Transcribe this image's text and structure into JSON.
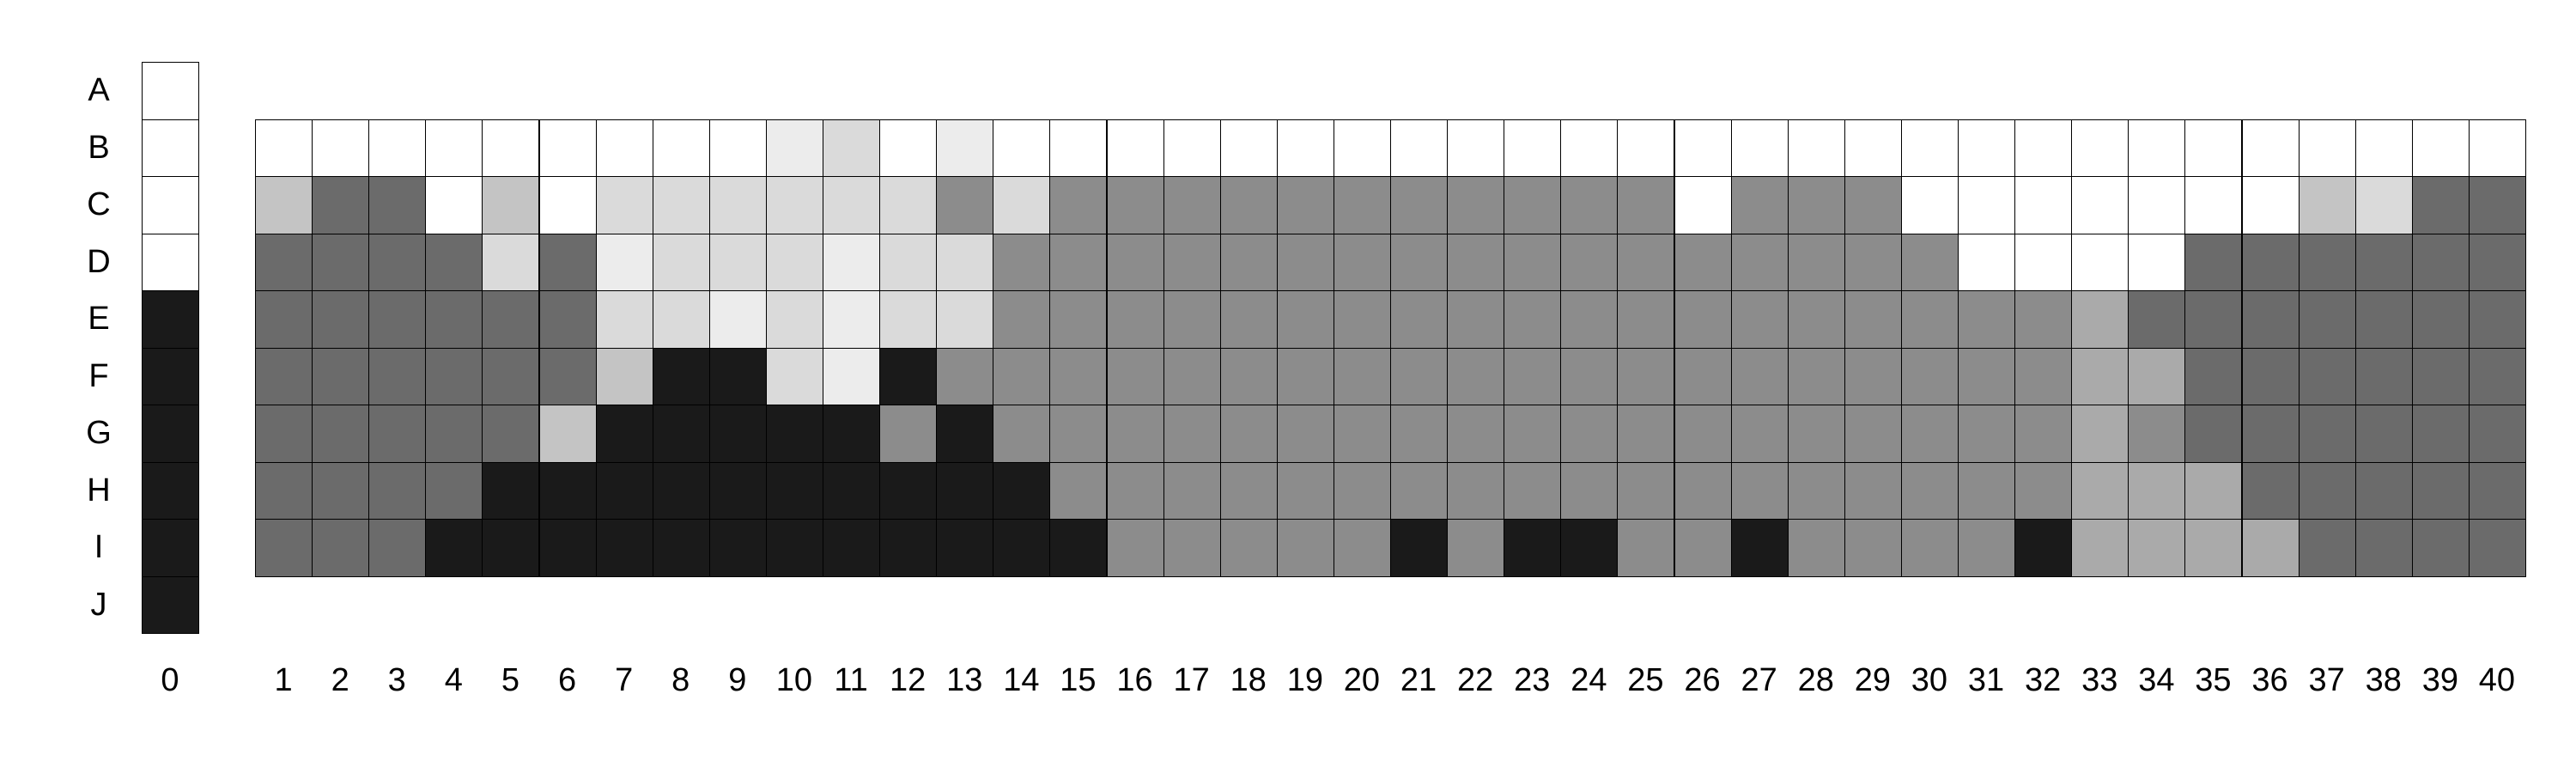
{
  "palette": {
    "W": "#ffffff",
    "V": "#ececec",
    "L": "#dadada",
    "S": "#c4c4c4",
    "A": "#aaaaaa",
    "M": "#8c8c8c",
    "D": "#6b6b6b",
    "K": "#1a1a1a"
  },
  "row_labels": [
    "A",
    "B",
    "C",
    "D",
    "E",
    "F",
    "G",
    "H",
    "I",
    "J"
  ],
  "column_zero": {
    "label": "0",
    "cells": [
      "W",
      "W",
      "W",
      "W",
      "K",
      "K",
      "K",
      "K",
      "K",
      "K"
    ]
  },
  "column_labels": [
    "1",
    "2",
    "3",
    "4",
    "5",
    "6",
    "7",
    "8",
    "9",
    "10",
    "11",
    "12",
    "13",
    "14",
    "15",
    "16",
    "17",
    "18",
    "19",
    "20",
    "21",
    "22",
    "23",
    "24",
    "25",
    "26",
    "27",
    "28",
    "29",
    "30",
    "31",
    "32",
    "33",
    "34",
    "35",
    "36",
    "37",
    "38",
    "39",
    "40"
  ],
  "grid_rows": [
    {
      "row": "B",
      "cells": [
        "W",
        "W",
        "W",
        "W",
        "W",
        "W",
        "W",
        "W",
        "W",
        "V",
        "L",
        "W",
        "V",
        "W",
        "W",
        "W",
        "W",
        "W",
        "W",
        "W",
        "W",
        "W",
        "W",
        "W",
        "W",
        "W",
        "W",
        "W",
        "W",
        "W",
        "W",
        "W",
        "W",
        "W",
        "W",
        "W",
        "W",
        "W",
        "W",
        "W"
      ]
    },
    {
      "row": "C",
      "cells": [
        "S",
        "D",
        "D",
        "W",
        "S",
        "W",
        "L",
        "L",
        "L",
        "L",
        "L",
        "L",
        "M",
        "L",
        "M",
        "M",
        "M",
        "M",
        "M",
        "M",
        "M",
        "M",
        "M",
        "M",
        "M",
        "W",
        "M",
        "M",
        "M",
        "W",
        "W",
        "W",
        "W",
        "W",
        "W",
        "W",
        "S",
        "L",
        "D",
        "D"
      ]
    },
    {
      "row": "D",
      "cells": [
        "D",
        "D",
        "D",
        "D",
        "L",
        "D",
        "V",
        "L",
        "L",
        "L",
        "V",
        "L",
        "L",
        "M",
        "M",
        "M",
        "M",
        "M",
        "M",
        "M",
        "M",
        "M",
        "M",
        "M",
        "M",
        "M",
        "M",
        "M",
        "M",
        "M",
        "W",
        "W",
        "W",
        "W",
        "D",
        "D",
        "D",
        "D",
        "D",
        "D"
      ]
    },
    {
      "row": "E",
      "cells": [
        "D",
        "D",
        "D",
        "D",
        "D",
        "D",
        "L",
        "L",
        "V",
        "L",
        "V",
        "L",
        "L",
        "M",
        "M",
        "M",
        "M",
        "M",
        "M",
        "M",
        "M",
        "M",
        "M",
        "M",
        "M",
        "M",
        "M",
        "M",
        "M",
        "M",
        "M",
        "M",
        "A",
        "D",
        "D",
        "D",
        "D",
        "D",
        "D",
        "D"
      ]
    },
    {
      "row": "F",
      "cells": [
        "D",
        "D",
        "D",
        "D",
        "D",
        "D",
        "S",
        "K",
        "K",
        "L",
        "V",
        "K",
        "M",
        "M",
        "M",
        "M",
        "M",
        "M",
        "M",
        "M",
        "M",
        "M",
        "M",
        "M",
        "M",
        "M",
        "M",
        "M",
        "M",
        "M",
        "M",
        "M",
        "A",
        "A",
        "D",
        "D",
        "D",
        "D",
        "D",
        "D"
      ]
    },
    {
      "row": "G",
      "cells": [
        "D",
        "D",
        "D",
        "D",
        "D",
        "S",
        "K",
        "K",
        "K",
        "K",
        "K",
        "M",
        "K",
        "M",
        "M",
        "M",
        "M",
        "M",
        "M",
        "M",
        "M",
        "M",
        "M",
        "M",
        "M",
        "M",
        "M",
        "M",
        "M",
        "M",
        "M",
        "M",
        "A",
        "M",
        "D",
        "D",
        "D",
        "D",
        "D",
        "D"
      ]
    },
    {
      "row": "H",
      "cells": [
        "D",
        "D",
        "D",
        "D",
        "K",
        "K",
        "K",
        "K",
        "K",
        "K",
        "K",
        "K",
        "K",
        "K",
        "M",
        "M",
        "M",
        "M",
        "M",
        "M",
        "M",
        "M",
        "M",
        "M",
        "M",
        "M",
        "M",
        "M",
        "M",
        "M",
        "M",
        "M",
        "A",
        "A",
        "A",
        "D",
        "D",
        "D",
        "D",
        "D"
      ]
    },
    {
      "row": "I",
      "cells": [
        "D",
        "D",
        "D",
        "K",
        "K",
        "K",
        "K",
        "K",
        "K",
        "K",
        "K",
        "K",
        "K",
        "K",
        "K",
        "M",
        "M",
        "M",
        "M",
        "M",
        "K",
        "M",
        "K",
        "K",
        "M",
        "M",
        "K",
        "M",
        "M",
        "M",
        "M",
        "K",
        "A",
        "A",
        "A",
        "A",
        "D",
        "D",
        "D",
        "D"
      ]
    }
  ]
}
